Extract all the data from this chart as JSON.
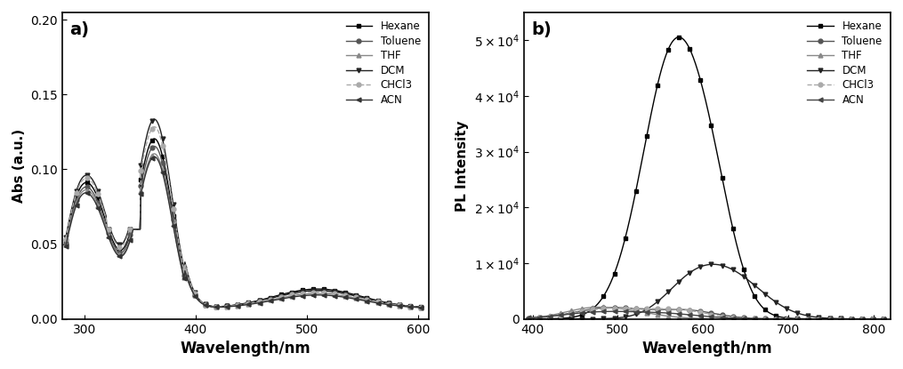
{
  "panel_a": {
    "xlabel": "Wavelength/nm",
    "ylabel": "Abs (a.u.)",
    "xlim": [
      280,
      610
    ],
    "ylim": [
      0.0,
      0.205
    ],
    "yticks": [
      0.0,
      0.05,
      0.1,
      0.15,
      0.2
    ],
    "xticks": [
      300,
      400,
      500,
      600
    ],
    "label": "a)",
    "solvent_names": [
      "Hexane",
      "Toluene",
      "THF",
      "DCM",
      "CHCl3",
      "ACN"
    ],
    "markers": [
      "s",
      "o",
      "^",
      "v",
      "o",
      "<"
    ],
    "linestyles": [
      "-",
      "-",
      "-",
      "-",
      "--",
      "-"
    ],
    "colors": [
      "#000000",
      "#555555",
      "#888888",
      "#222222",
      "#aaaaaa",
      "#333333"
    ],
    "peak1_amps": [
      0.085,
      0.082,
      0.08,
      0.09,
      0.088,
      0.078
    ],
    "peak2_amps": [
      0.12,
      0.115,
      0.11,
      0.133,
      0.128,
      0.108
    ],
    "tail_amps": [
      0.013,
      0.012,
      0.01,
      0.012,
      0.011,
      0.009
    ]
  },
  "panel_b": {
    "xlabel": "Wavelength/nm",
    "ylabel": "PL Intensity",
    "xlim": [
      390,
      820
    ],
    "ylim": [
      0,
      55000
    ],
    "xticks": [
      400,
      500,
      600,
      700,
      800
    ],
    "ytick_vals": [
      0,
      10000,
      20000,
      30000,
      40000,
      50000
    ],
    "ytick_labels": [
      "0",
      "1×10$^4$",
      "2×10$^4$",
      "3×10$^4$",
      "4×10$^4$",
      "5×10$^4$"
    ],
    "label": "b)",
    "solvent_names": [
      "Hexane",
      "Toluene",
      "THF",
      "DCM",
      "CHCl3",
      "ACN"
    ],
    "markers": [
      "s",
      "o",
      "^",
      "v",
      "o",
      "<"
    ],
    "linestyles": [
      "-",
      "-",
      "-",
      "-",
      "--",
      "-"
    ],
    "colors": [
      "#000000",
      "#555555",
      "#888888",
      "#222222",
      "#aaaaaa",
      "#444444"
    ]
  }
}
